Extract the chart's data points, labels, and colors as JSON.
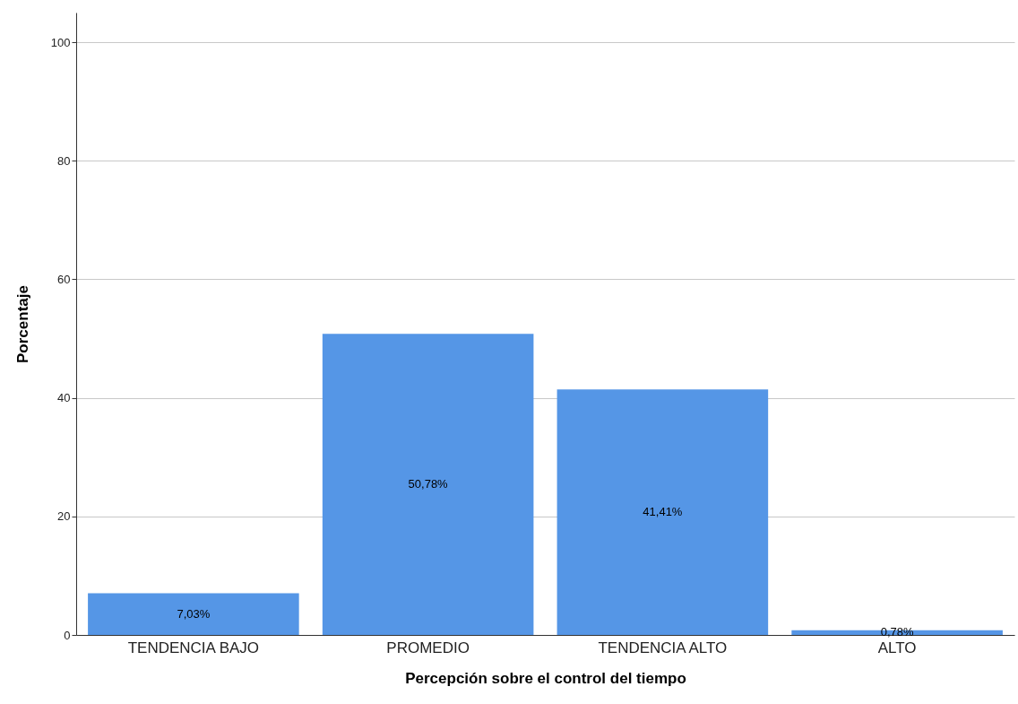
{
  "chart_data": {
    "type": "bar",
    "xlabel": "Percepción sobre el control del tiempo",
    "ylabel": "Porcentaje",
    "categories": [
      "TENDENCIA BAJO",
      "PROMEDIO",
      "TENDENCIA ALTO",
      "ALTO"
    ],
    "values": [
      7.03,
      50.78,
      41.41,
      0.78
    ],
    "value_labels": [
      "7,03%",
      "50,78%",
      "41,41%",
      "0,78%"
    ],
    "color": "#5596e6",
    "ylim": [
      0,
      105
    ],
    "yticks": [
      0,
      20,
      40,
      60,
      80,
      100
    ],
    "grid": "y"
  }
}
